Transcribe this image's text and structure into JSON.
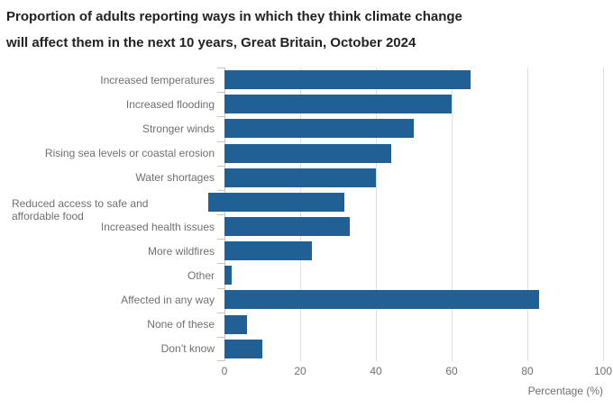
{
  "title": {
    "lines": [
      "Proportion of adults reporting ways in which they think climate change",
      "will affect them in the next 10 years, Great Britain, October 2024"
    ]
  },
  "chart_data": {
    "type": "bar",
    "orientation": "horizontal",
    "title": "Proportion of adults reporting ways in which they think climate change will affect them in the next 10 years, Great Britain, October 2024",
    "categories": [
      "Increased temperatures",
      "Increased flooding",
      "Stronger winds",
      "Rising sea levels or coastal erosion",
      "Water shortages",
      "Reduced access to safe and affordable food",
      "Increased health issues",
      "More wildfires",
      "Other",
      "Affected in any way",
      "None of these",
      "Don’t know"
    ],
    "values": [
      65,
      60,
      50,
      44,
      40,
      36,
      33,
      23,
      2,
      83,
      6,
      10
    ],
    "xlabel": "Percentage (%)",
    "xticks": [
      0,
      20,
      40,
      60,
      80,
      100
    ],
    "xlim": [
      0,
      100
    ],
    "grid": true,
    "legend": "none"
  },
  "colors": {
    "bar": "#206095",
    "title_text": "#222222",
    "label_text": "#707071",
    "gridline": "#e0e0e0",
    "axis_line": "#c4c7cc",
    "background": "#ffffff"
  }
}
